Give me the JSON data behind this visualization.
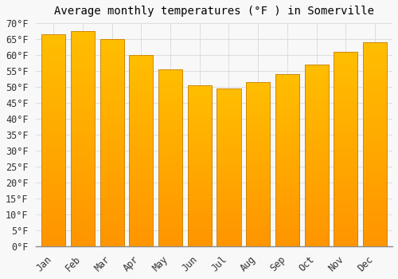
{
  "title": "Average monthly temperatures (°F ) in Somerville",
  "months": [
    "Jan",
    "Feb",
    "Mar",
    "Apr",
    "May",
    "Jun",
    "Jul",
    "Aug",
    "Sep",
    "Oct",
    "Nov",
    "Dec"
  ],
  "values": [
    66.5,
    67.5,
    65.0,
    60.0,
    55.5,
    50.5,
    49.5,
    51.5,
    54.0,
    57.0,
    61.0,
    64.0
  ],
  "bar_color_top": "#FFBE00",
  "bar_color_bottom": "#FF9500",
  "bar_edge_color": "#C8820A",
  "background_color": "#F8F8F8",
  "grid_color": "#DDDDDD",
  "ylim": [
    0,
    70
  ],
  "ytick_step": 5,
  "title_fontsize": 10,
  "tick_fontsize": 8.5,
  "bar_width": 0.82
}
